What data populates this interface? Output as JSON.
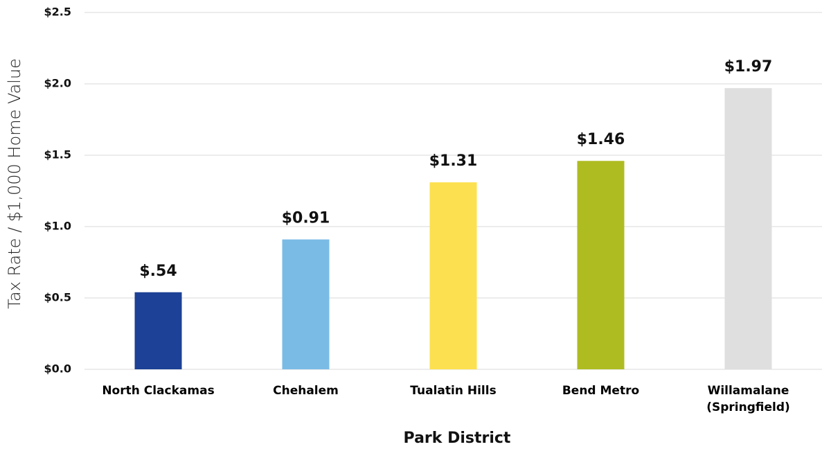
{
  "chart_data": {
    "type": "bar",
    "xlabel": "Park District",
    "ylabel": "Tax Rate / $1,000 Home Value",
    "categories": [
      "North Clackamas",
      "Chehalem",
      "Tualatin Hills",
      "Bend Metro",
      "Willamalane (Springfield)"
    ],
    "values": [
      0.54,
      0.91,
      1.31,
      1.46,
      1.97
    ],
    "value_labels": [
      "$.54",
      "$0.91",
      "$1.31",
      "$1.46",
      "$1.97"
    ],
    "colors": [
      "#1c4196",
      "#7abbe6",
      "#fde04f",
      "#aebc22",
      "#dfdfdf"
    ],
    "ylim": [
      0,
      2.5
    ],
    "yticks": [
      {
        "value": 0,
        "label": "$0.0"
      },
      {
        "value": 0.5,
        "label": "$0.5"
      },
      {
        "value": 1,
        "label": "$1.0"
      },
      {
        "value": 1.5,
        "label": "$1.5"
      },
      {
        "value": 2,
        "label": "$2.0"
      },
      {
        "value": 2.5,
        "label": "$2.5"
      }
    ],
    "grid": true
  }
}
